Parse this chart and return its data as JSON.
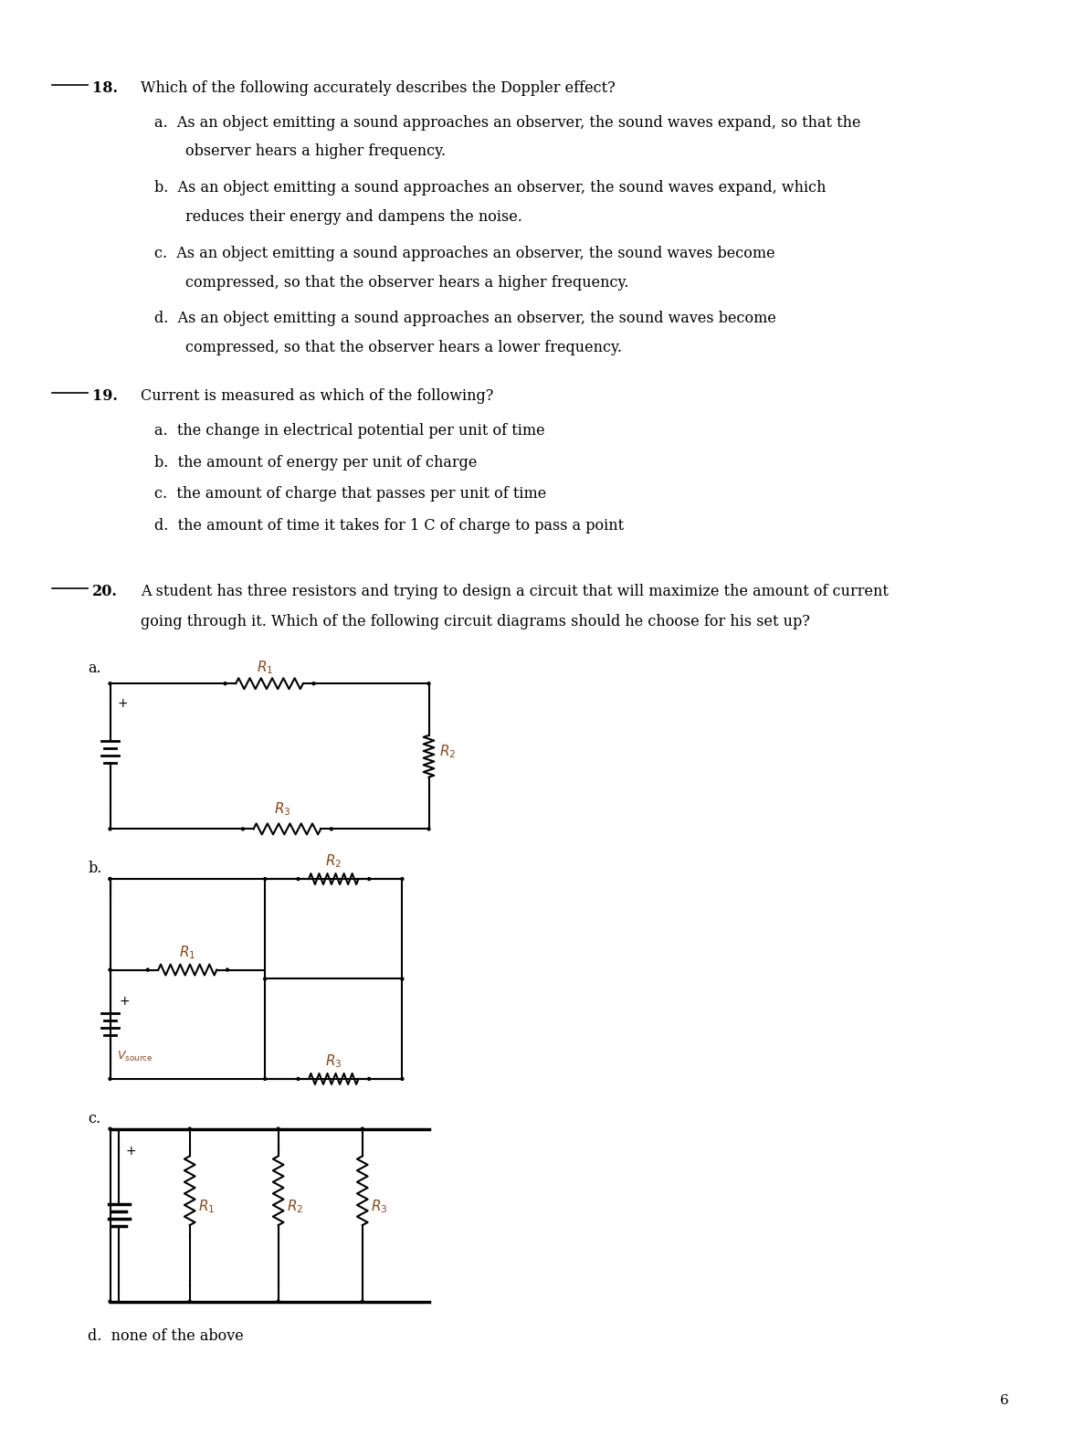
{
  "bg_color": "#ffffff",
  "text_color": "#000000",
  "page_number": "6",
  "q18_num": "18.",
  "q18_text": "Which of the following accurately describes the Doppler effect?",
  "q18_a": "a.  As an object emitting a sound approaches an observer, the sound waves expand, so that the\n        observer hears a higher frequency.",
  "q18_b": "b.  As an object emitting a sound approaches an observer, the sound waves expand, which\n        reduces their energy and dampens the noise.",
  "q18_c": "c.  As an object emitting a sound approaches an observer, the sound waves become\n        compressed, so that the observer hears a higher frequency.",
  "q18_d": "d.  As an object emitting a sound approaches an observer, the sound waves become\n        compressed, so that the observer hears a lower frequency.",
  "q19_num": "19.",
  "q19_text": "Current is measured as which of the following?",
  "q19_a": "a.  the change in electrical potential per unit of time",
  "q19_b": "b.  the amount of energy per unit of charge",
  "q19_c": "c.  the amount of charge that passes per unit of time",
  "q19_d": "d.  the amount of time it takes for 1 C of charge to pass a point",
  "q20_num": "20.",
  "q20_text": "A student has three resistors and trying to design a circuit that will maximize the amount of current\ngoing through it. Which of the following circuit diagrams should he choose for his set up?",
  "q20_d": "d.  none of the above"
}
